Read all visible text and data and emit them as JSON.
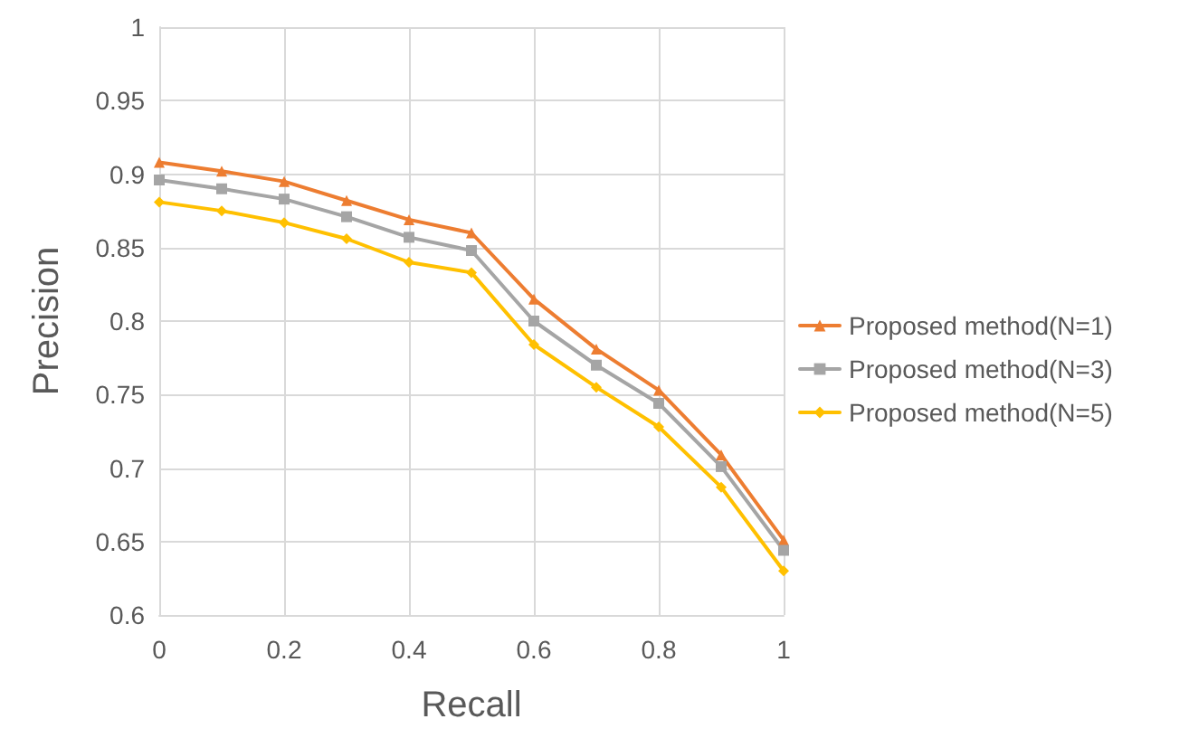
{
  "chart_data": {
    "type": "line",
    "xlabel": "Recall",
    "ylabel": "Precision",
    "x": [
      0,
      0.1,
      0.2,
      0.3,
      0.4,
      0.5,
      0.6,
      0.7,
      0.8,
      0.9,
      1
    ],
    "series": [
      {
        "name": "Proposed method(N=1)",
        "color": "#ed7d31",
        "marker": "triangle",
        "values": [
          0.908,
          0.902,
          0.895,
          0.882,
          0.869,
          0.86,
          0.815,
          0.781,
          0.753,
          0.709,
          0.651
        ]
      },
      {
        "name": "Proposed method(N=3)",
        "color": "#a5a5a5",
        "marker": "square",
        "values": [
          0.896,
          0.89,
          0.883,
          0.871,
          0.857,
          0.848,
          0.8,
          0.77,
          0.744,
          0.701,
          0.644
        ]
      },
      {
        "name": "Proposed method(N=5)",
        "color": "#ffc000",
        "marker": "diamond",
        "values": [
          0.881,
          0.875,
          0.867,
          0.856,
          0.84,
          0.833,
          0.784,
          0.755,
          0.728,
          0.687,
          0.63
        ]
      }
    ],
    "xlim": [
      0,
      1
    ],
    "xticks": [
      0,
      0.2,
      0.4,
      0.6,
      0.8,
      1
    ],
    "ylim": [
      0.6,
      1
    ],
    "yticks": [
      0.6,
      0.65,
      0.7,
      0.75,
      0.8,
      0.85,
      0.9,
      0.95,
      1
    ],
    "grid": true,
    "legend": "right",
    "line_style": "solid"
  }
}
